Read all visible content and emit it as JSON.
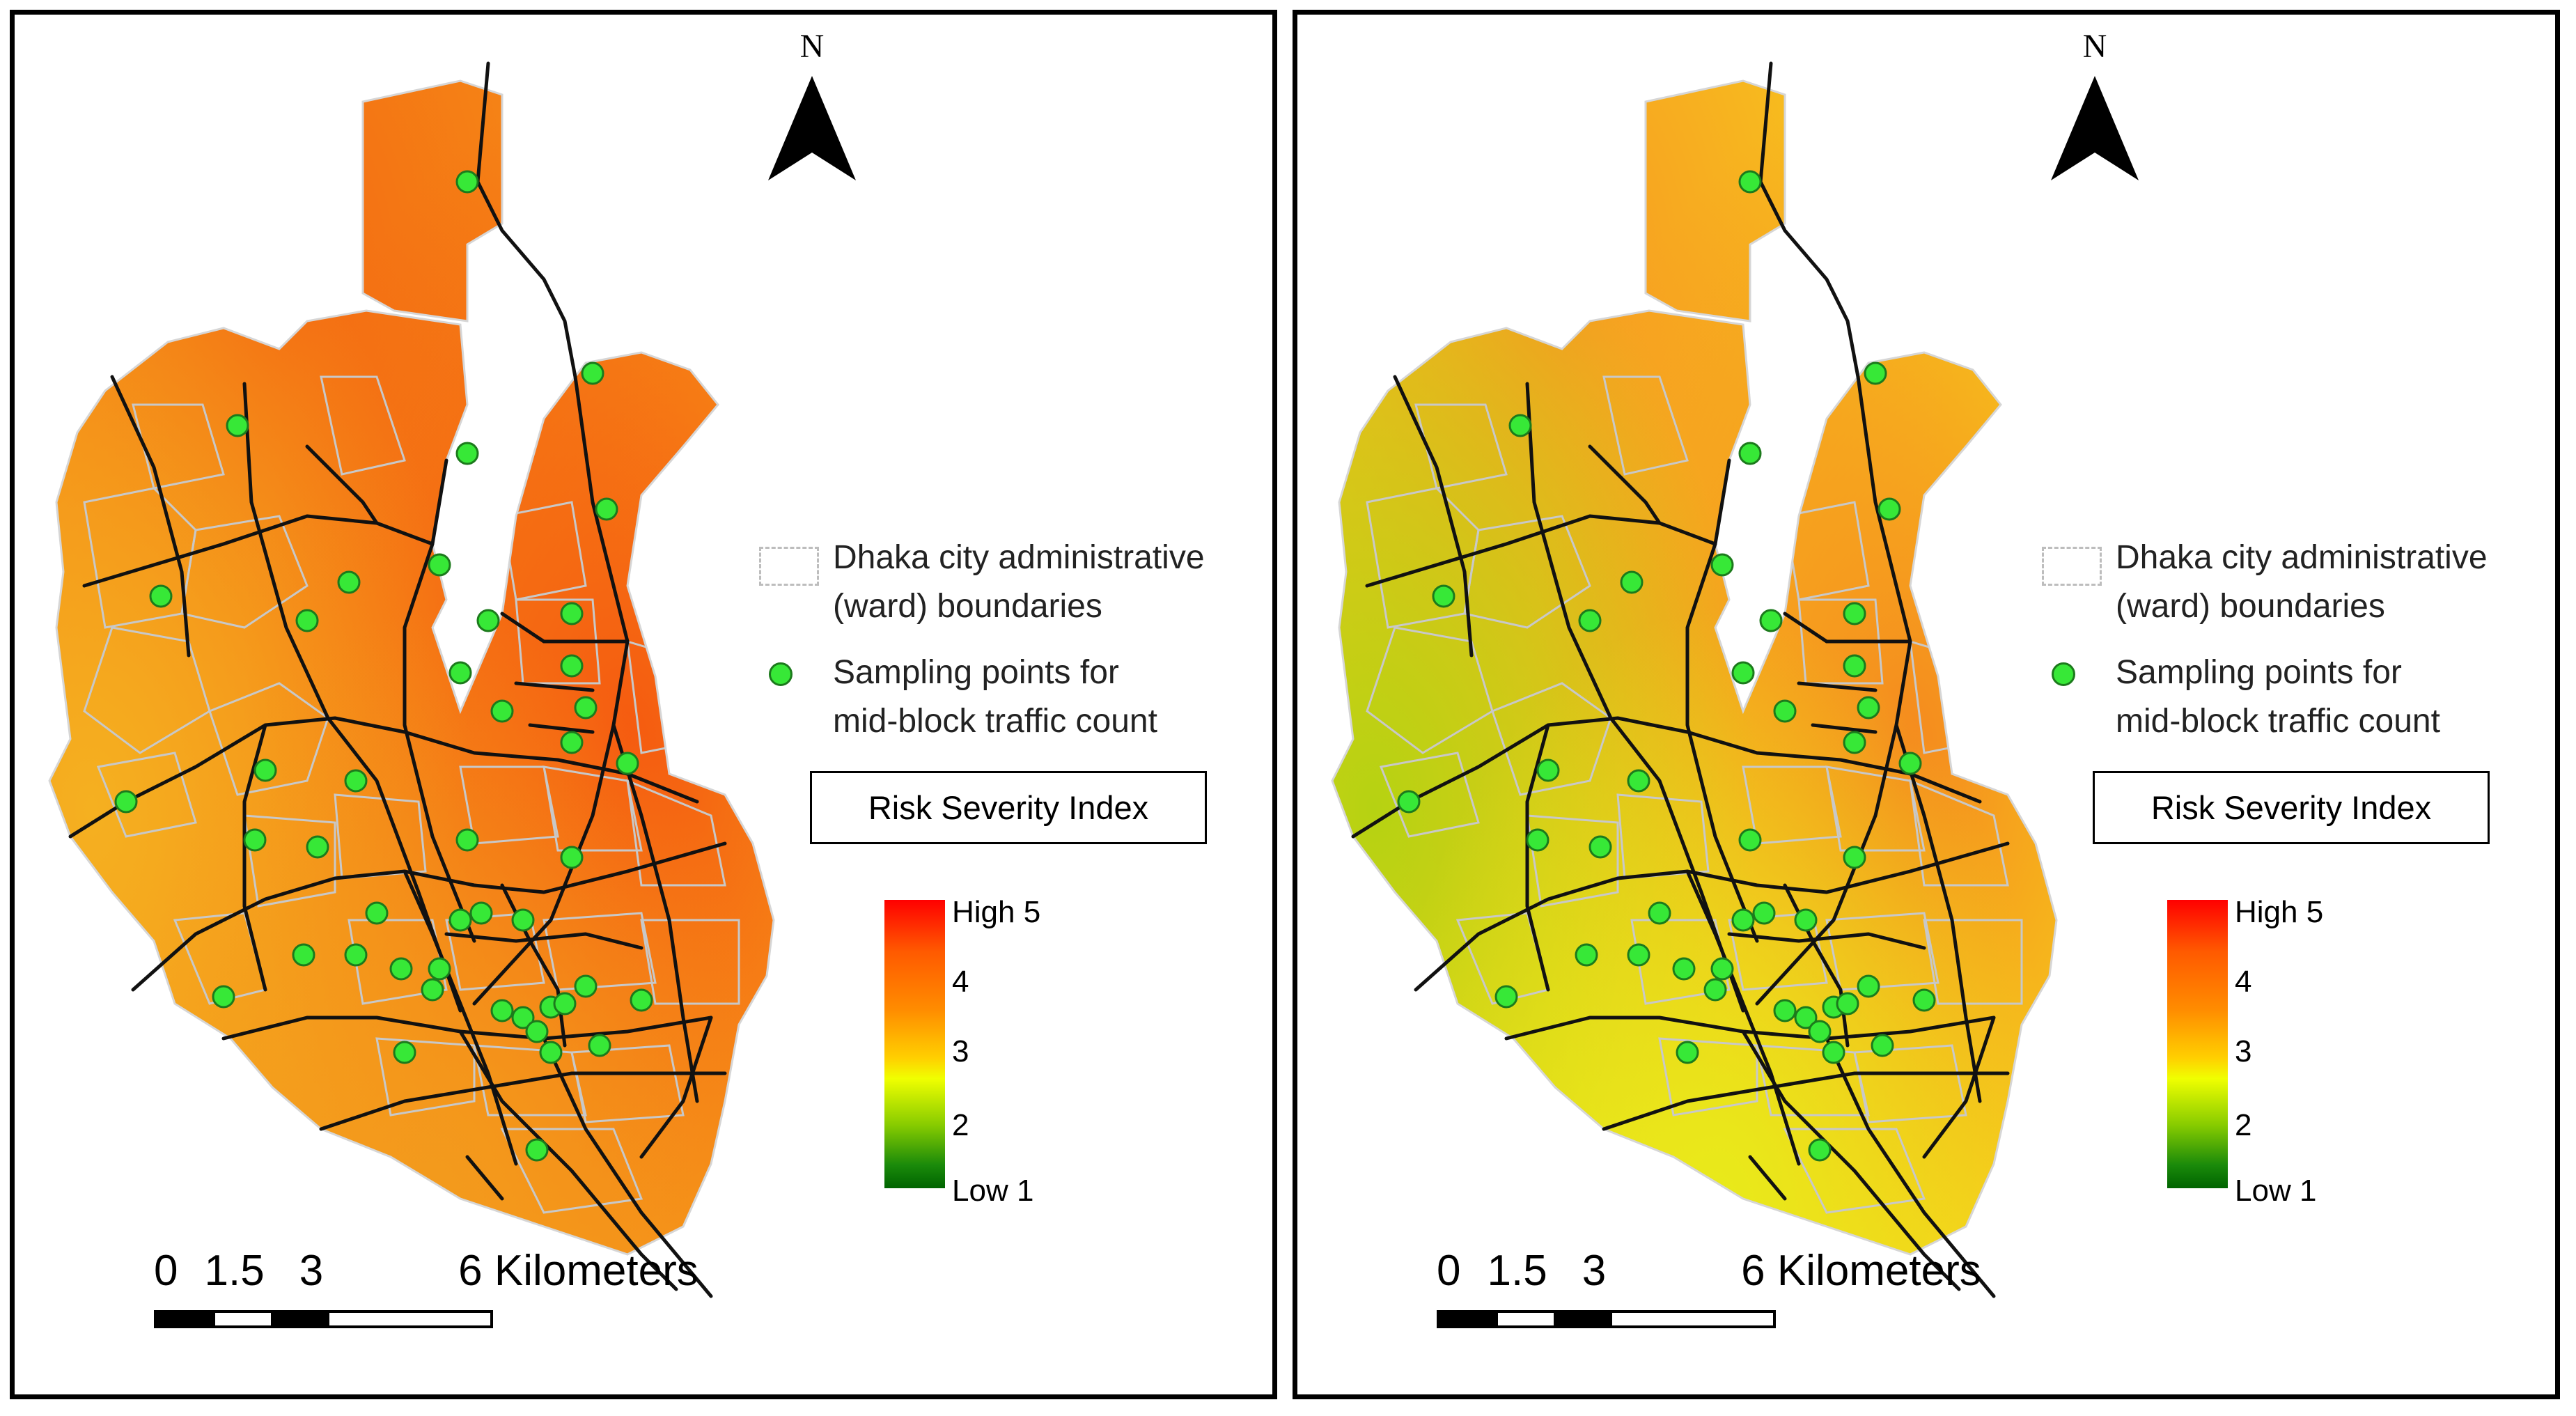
{
  "panels": [
    {
      "id": "left",
      "north_label": "N",
      "legend": {
        "ward_line1": "Dhaka city administrative",
        "ward_line2": "(ward) boundaries",
        "point_line1": "Sampling points for",
        "point_line2": "mid-block traffic count"
      },
      "risk_title": "Risk Severity Index",
      "colorbar": {
        "high": "High 5",
        "four": "4",
        "three": "3",
        "two": "2",
        "low": "Low 1"
      },
      "scale": {
        "n0": "0",
        "n1": "1.5",
        "n2": "3",
        "n3": "6 Kilometers"
      },
      "surface_colors": {
        "north": "#f46a12",
        "east": "#f55a10",
        "west": "#f6a01a",
        "southwest": "#f5b020",
        "south": "#f39a1c"
      }
    },
    {
      "id": "right",
      "north_label": "N",
      "legend": {
        "ward_line1": "Dhaka city administrative",
        "ward_line2": "(ward) boundaries",
        "point_line1": "Sampling points for",
        "point_line2": "mid-block traffic count"
      },
      "risk_title": "Risk Severity Index",
      "colorbar": {
        "high": "High 5",
        "four": "4",
        "three": "3",
        "two": "2",
        "low": "Low 1"
      },
      "scale": {
        "n0": "0",
        "n1": "1.5",
        "n2": "3",
        "n3": "6 Kilometers"
      },
      "surface_colors": {
        "north": "#f79a22",
        "east": "#f58a1e",
        "west": "#f7e21a",
        "southwest": "#b6d212",
        "south": "#e8ea1a"
      }
    }
  ],
  "colors": {
    "road": "#111111",
    "ward_boundary": "#c8c8c8",
    "point_fill": "#37e837",
    "point_stroke": "#1c7a1c"
  }
}
